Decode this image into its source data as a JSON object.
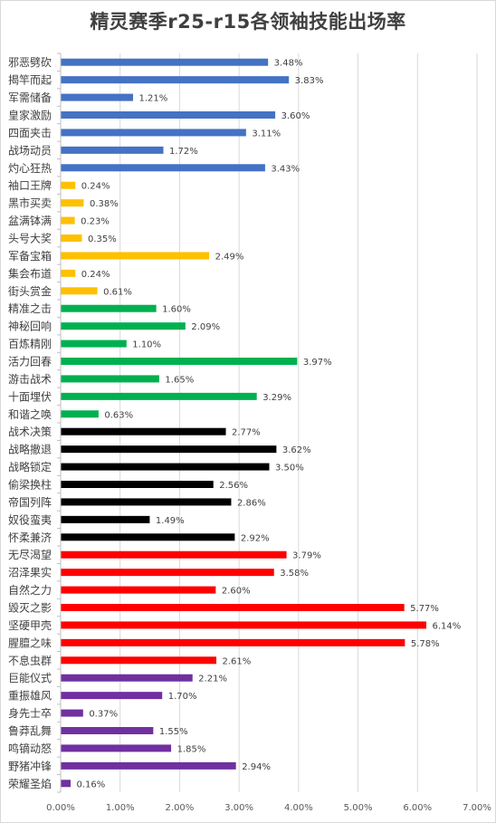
{
  "chart_data": {
    "type": "bar",
    "orientation": "horizontal",
    "title": "精灵赛季r25-r15各领袖技能出场率",
    "xlim": [
      0,
      7
    ],
    "x_ticks": [
      "0.00%",
      "1.00%",
      "2.00%",
      "3.00%",
      "4.00%",
      "5.00%",
      "6.00%",
      "7.00%"
    ],
    "grid": "vertical",
    "categories": [
      "邪恶劈砍",
      "揭竿而起",
      "军需储备",
      "皇家激励",
      "四面夹击",
      "战场动员",
      "灼心狂热",
      "袖口王牌",
      "黑市买卖",
      "盆满钵满",
      "头号大奖",
      "军备宝箱",
      "集会布道",
      "街头赏金",
      "精准之击",
      "神秘回响",
      "百炼精刚",
      "活力回春",
      "游击战术",
      "十面埋伏",
      "和谐之唤",
      "战术决策",
      "战略撤退",
      "战略锁定",
      "偷梁换柱",
      "帝国列阵",
      "奴役蛮夷",
      "怀柔兼济",
      "无尽渴望",
      "沼泽果实",
      "自然之力",
      "毁灭之影",
      "坚硬甲壳",
      "腥膻之味",
      "不息虫群",
      "巨能仪式",
      "重振雄风",
      "身先士卒",
      "鲁莽乱舞",
      "鸣镝动怒",
      "野猪冲锋",
      "荣耀圣焰"
    ],
    "values": [
      3.48,
      3.83,
      1.21,
      3.6,
      3.11,
      1.72,
      3.43,
      0.24,
      0.38,
      0.23,
      0.35,
      2.49,
      0.24,
      0.61,
      1.6,
      2.09,
      1.1,
      3.97,
      1.65,
      3.29,
      0.63,
      2.77,
      3.62,
      3.5,
      2.56,
      2.86,
      1.49,
      2.92,
      3.79,
      3.58,
      2.6,
      5.77,
      6.14,
      5.78,
      2.61,
      2.21,
      1.7,
      0.37,
      1.55,
      1.85,
      2.94,
      0.16
    ],
    "labels": [
      "3.48%",
      "3.83%",
      "1.21%",
      "3.60%",
      "3.11%",
      "1.72%",
      "3.43%",
      "0.24%",
      "0.38%",
      "0.23%",
      "0.35%",
      "2.49%",
      "0.24%",
      "0.61%",
      "1.60%",
      "2.09%",
      "1.10%",
      "3.97%",
      "1.65%",
      "3.29%",
      "0.63%",
      "2.77%",
      "3.62%",
      "3.50%",
      "2.56%",
      "2.86%",
      "1.49%",
      "2.92%",
      "3.79%",
      "3.58%",
      "2.60%",
      "5.77%",
      "6.14%",
      "5.78%",
      "2.61%",
      "2.21%",
      "1.70%",
      "0.37%",
      "1.55%",
      "1.85%",
      "2.94%",
      "0.16%"
    ],
    "colors": [
      "#4472c4",
      "#4472c4",
      "#4472c4",
      "#4472c4",
      "#4472c4",
      "#4472c4",
      "#4472c4",
      "#ffc000",
      "#ffc000",
      "#ffc000",
      "#ffc000",
      "#ffc000",
      "#ffc000",
      "#ffc000",
      "#00b050",
      "#00b050",
      "#00b050",
      "#00b050",
      "#00b050",
      "#00b050",
      "#00b050",
      "#000000",
      "#000000",
      "#000000",
      "#000000",
      "#000000",
      "#000000",
      "#000000",
      "#ff0000",
      "#ff0000",
      "#ff0000",
      "#ff0000",
      "#ff0000",
      "#ff0000",
      "#ff0000",
      "#7030a0",
      "#7030a0",
      "#7030a0",
      "#7030a0",
      "#7030a0",
      "#7030a0",
      "#7030a0"
    ]
  }
}
